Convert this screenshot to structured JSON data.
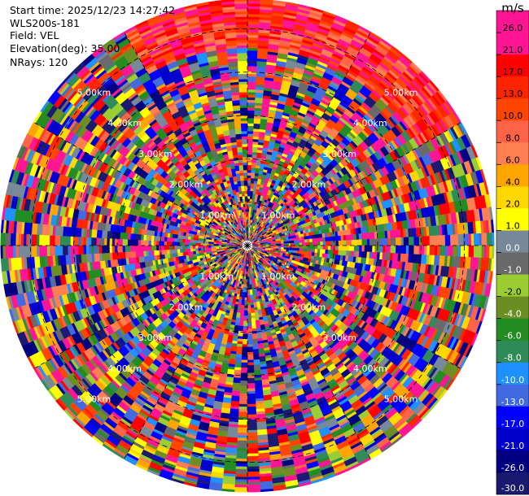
{
  "header": {
    "start_time": "Start time: 2025/12/23 14:27:42",
    "instrument": "WLS200s-181",
    "field": "Field: VEL",
    "elevation": "Elevation(deg): 35.00",
    "nrays": "NRays: 120"
  },
  "chart_data": {
    "type": "ppi",
    "field": "VEL",
    "elevation_deg": 35.0,
    "n_rays": 120,
    "colorbar": {
      "unit": "m/s",
      "ticks": [
        "26.0",
        "21.0",
        "17.0",
        "13.0",
        "10.0",
        "8.0",
        "6.0",
        "4.0",
        "2.0",
        "1.0",
        "0.0",
        "-1.0",
        "-2.0",
        "-4.0",
        "-6.0",
        "-8.0",
        "-10.0",
        "-13.0",
        "-17.0",
        "-21.0",
        "-26.0",
        "-30.0"
      ],
      "colors": [
        "#ff1493",
        "#ff1493",
        "#ff0000",
        "#ff2400",
        "#ff4500",
        "#ff6347",
        "#ff7f50",
        "#ffa500",
        "#ffd700",
        "#ffff00",
        "#778899",
        "#696969",
        "#9acd32",
        "#6b8e23",
        "#228b22",
        "#2e8b57",
        "#1e90ff",
        "#4169e1",
        "#0000ff",
        "#0000cd",
        "#000080",
        "#191970"
      ]
    },
    "range_rings_km": [
      {
        "value": 1.0,
        "label": "1.00km"
      },
      {
        "value": 2.0,
        "label": "2.00km"
      },
      {
        "value": 3.0,
        "label": "3.00km"
      },
      {
        "value": 4.0,
        "label": "4.00km"
      },
      {
        "value": 5.0,
        "label": "5.00km"
      }
    ],
    "max_range_km": 5.7,
    "sector_note": "north sector approx. azimuth 330-60 deg shows coherent positive velocities (6 to 26 m/s) in the outer rings; rest of field is noise",
    "ppi_grid": true
  }
}
